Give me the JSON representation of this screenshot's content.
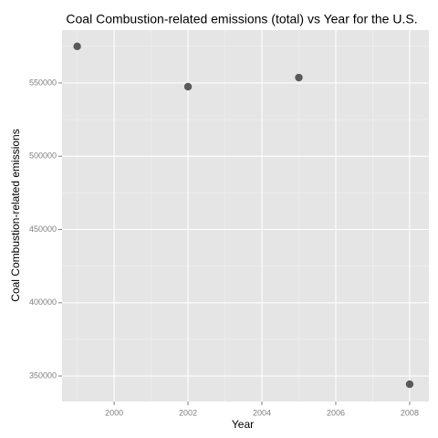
{
  "chart_data": {
    "type": "scatter",
    "title": "Coal Combustion-related emissions (total) vs Year for the U.S.",
    "x_label": "Year",
    "y_label": "Coal Combustion-related emissions",
    "x": [
      1999,
      2002,
      2005,
      2008
    ],
    "values": [
      575000,
      547500,
      553700,
      344400
    ],
    "color": "#595959",
    "xlim": [
      1998.59,
      2008.52
    ],
    "xticks": [
      2000,
      2002,
      2004,
      2006,
      2008
    ],
    "ylim": [
      332600,
      586100
    ],
    "yticks": [
      350000,
      400000,
      450000,
      500000,
      550000
    ],
    "grid": true
  }
}
